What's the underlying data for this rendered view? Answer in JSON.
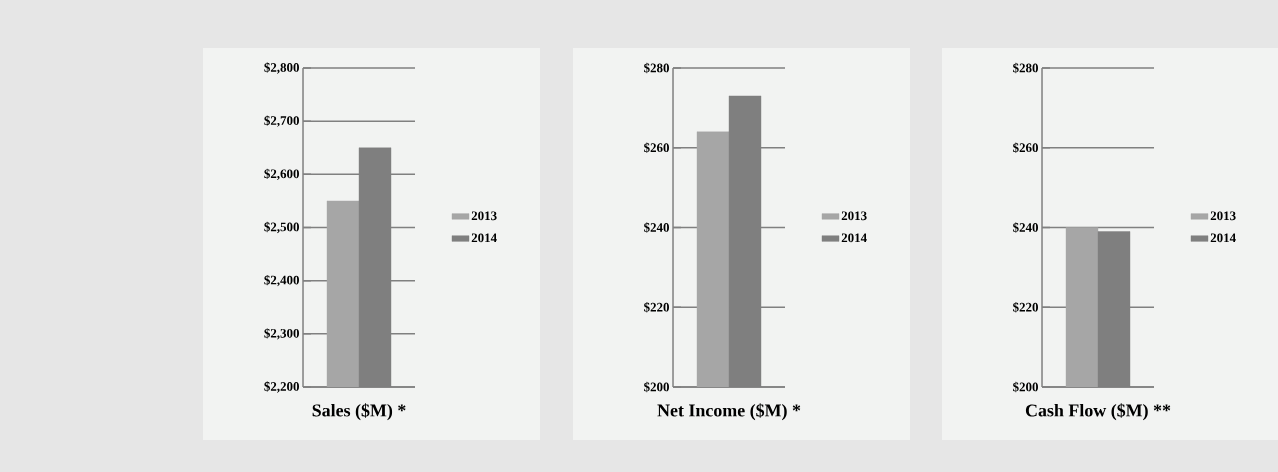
{
  "chart_data": [
    {
      "type": "bar",
      "xlabel": "Sales ($M) *",
      "categories": [
        null
      ],
      "series": [
        {
          "name": "2013",
          "color": "#a6a6a6",
          "values": [
            2550
          ]
        },
        {
          "name": "2014",
          "color": "#7f7f7f",
          "values": [
            2650
          ]
        }
      ],
      "ylim": [
        2200,
        2800
      ],
      "yticks": [
        {
          "value": 2200,
          "label": "$2,200"
        },
        {
          "value": 2300,
          "label": "$2,300"
        },
        {
          "value": 2400,
          "label": "$2,400"
        },
        {
          "value": 2500,
          "label": "$2,500"
        },
        {
          "value": 2600,
          "label": "$2,600"
        },
        {
          "value": 2700,
          "label": "$2,700"
        },
        {
          "value": 2800,
          "label": "$2,800"
        }
      ],
      "grid": "y",
      "legend": "right"
    },
    {
      "type": "bar",
      "xlabel": "Net Income ($M) *",
      "categories": [
        null
      ],
      "series": [
        {
          "name": "2013",
          "color": "#a6a6a6",
          "values": [
            264
          ]
        },
        {
          "name": "2014",
          "color": "#7f7f7f",
          "values": [
            273
          ]
        }
      ],
      "ylim": [
        200,
        280
      ],
      "yticks": [
        {
          "value": 200,
          "label": "$200"
        },
        {
          "value": 220,
          "label": "$220"
        },
        {
          "value": 240,
          "label": "$240"
        },
        {
          "value": 260,
          "label": "$260"
        },
        {
          "value": 280,
          "label": "$280"
        }
      ],
      "grid": "y",
      "legend": "right"
    },
    {
      "type": "bar",
      "xlabel": "Cash Flow ($M) **",
      "categories": [
        null
      ],
      "series": [
        {
          "name": "2013",
          "color": "#a6a6a6",
          "values": [
            240
          ]
        },
        {
          "name": "2014",
          "color": "#7f7f7f",
          "values": [
            239
          ]
        }
      ],
      "ylim": [
        200,
        280
      ],
      "yticks": [
        {
          "value": 200,
          "label": "$200"
        },
        {
          "value": 220,
          "label": "$220"
        },
        {
          "value": 240,
          "label": "$240"
        },
        {
          "value": 260,
          "label": "$260"
        },
        {
          "value": 280,
          "label": "$280"
        }
      ],
      "grid": "y",
      "legend": "right"
    }
  ]
}
